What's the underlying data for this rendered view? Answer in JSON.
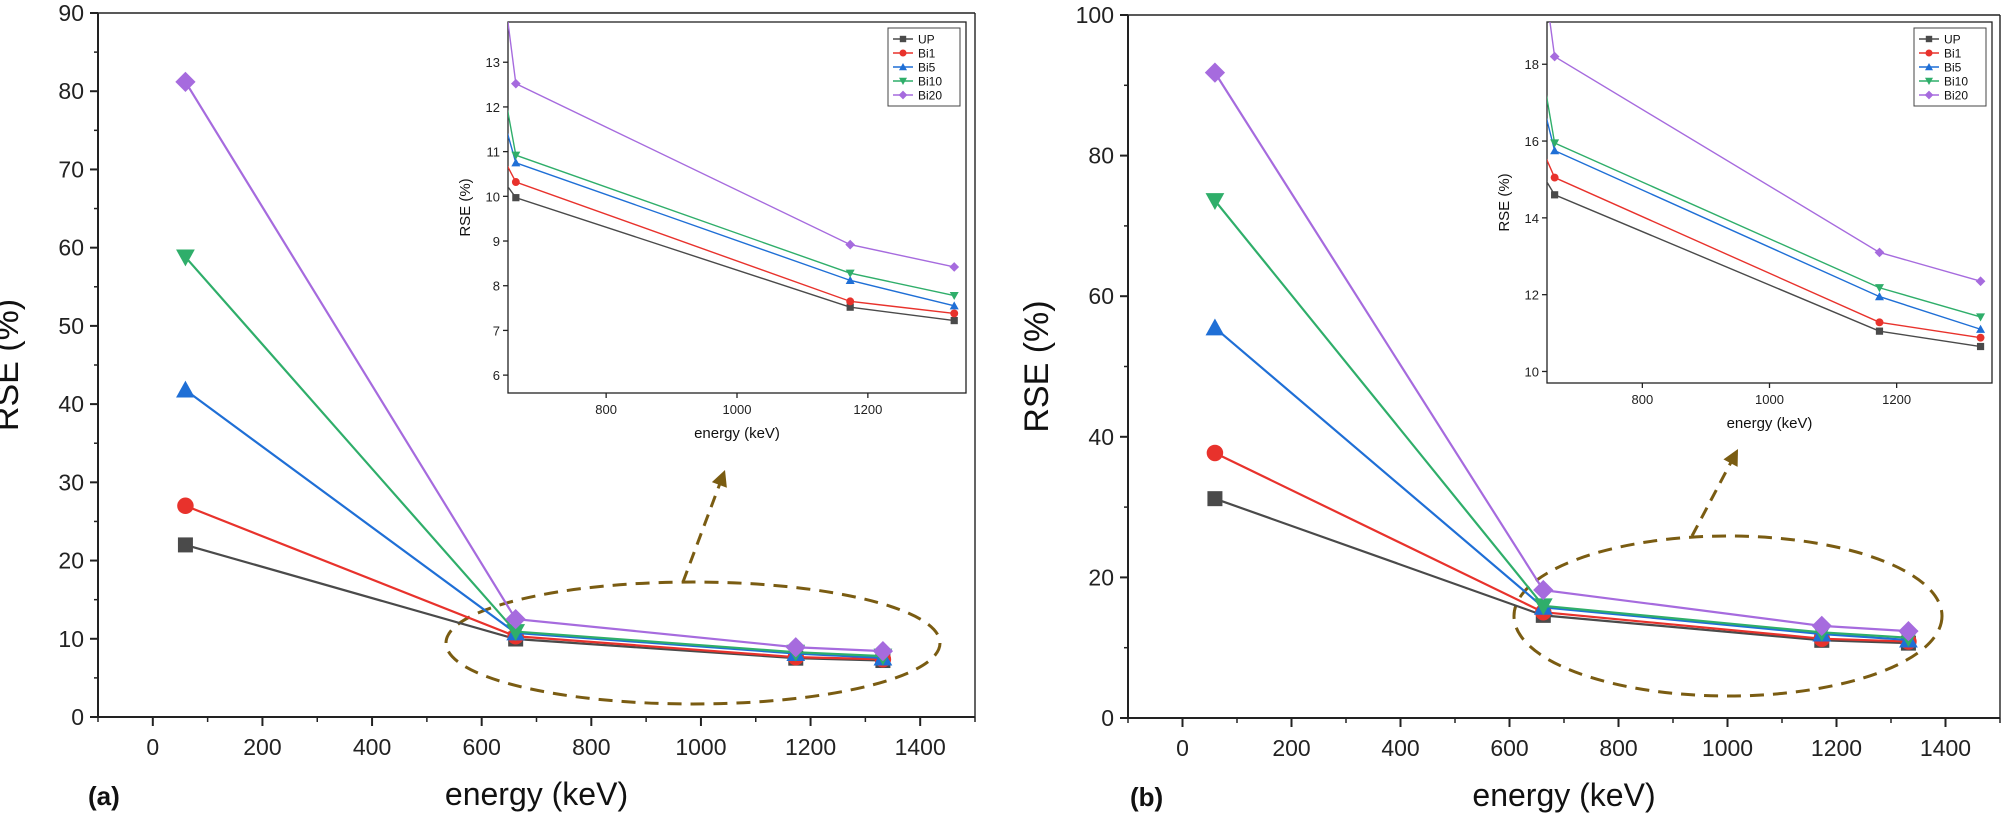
{
  "chart_data": [
    {
      "type": "line",
      "panel_label": "(a)",
      "xlabel": "energy (keV)",
      "ylabel": "RSE (%)",
      "xlim": [
        -100,
        1500
      ],
      "ylim": [
        0,
        90
      ],
      "xticks": [
        0,
        200,
        400,
        600,
        800,
        1000,
        1200,
        1400
      ],
      "yticks": [
        0,
        10,
        20,
        30,
        40,
        50,
        60,
        70,
        80,
        90
      ],
      "x": [
        59.5,
        662,
        1173,
        1332
      ],
      "series": [
        {
          "name": "UP",
          "color": "#4a4a4a",
          "marker": "square",
          "values": [
            22.0,
            9.97,
            7.52,
            7.22
          ]
        },
        {
          "name": "Bi1",
          "color": "#e8322c",
          "marker": "circle",
          "values": [
            27.0,
            10.32,
            7.65,
            7.38
          ]
        },
        {
          "name": "Bi5",
          "color": "#1f6fd6",
          "marker": "triangle",
          "values": [
            41.8,
            10.75,
            8.12,
            7.55
          ]
        },
        {
          "name": "Bi10",
          "color": "#2fae6a",
          "marker": "tri-down",
          "values": [
            58.8,
            10.92,
            8.28,
            7.78
          ]
        },
        {
          "name": "Bi20",
          "color": "#a66bde",
          "marker": "diamond",
          "values": [
            81.2,
            12.52,
            8.92,
            8.42
          ]
        }
      ],
      "annotation": "ellipse-with-arrow",
      "inset": {
        "xlabel": "energy (keV)",
        "ylabel": "RSE (%)",
        "xlim": [
          650,
          1350
        ],
        "ylim": [
          5.6,
          13.9
        ],
        "xticks": [
          800,
          1000,
          1200
        ],
        "yticks": [
          6,
          7,
          8,
          9,
          10,
          11,
          12,
          13
        ],
        "legend": "top-right"
      }
    },
    {
      "type": "line",
      "panel_label": "(b)",
      "xlabel": "energy (keV)",
      "ylabel": "RSE (%)",
      "xlim": [
        -100,
        1500
      ],
      "ylim": [
        0,
        100
      ],
      "xticks": [
        0,
        200,
        400,
        600,
        800,
        1000,
        1200,
        1400
      ],
      "yticks": [
        0,
        20,
        40,
        60,
        80,
        100
      ],
      "x": [
        59.5,
        662,
        1173,
        1332
      ],
      "series": [
        {
          "name": "UP",
          "color": "#4a4a4a",
          "marker": "square",
          "values": [
            31.2,
            14.6,
            11.05,
            10.65
          ]
        },
        {
          "name": "Bi1",
          "color": "#e8322c",
          "marker": "circle",
          "values": [
            37.7,
            15.05,
            11.28,
            10.88
          ]
        },
        {
          "name": "Bi5",
          "color": "#1f6fd6",
          "marker": "triangle",
          "values": [
            55.5,
            15.75,
            11.95,
            11.1
          ]
        },
        {
          "name": "Bi10",
          "color": "#2fae6a",
          "marker": "tri-down",
          "values": [
            73.6,
            15.95,
            12.18,
            11.42
          ]
        },
        {
          "name": "Bi20",
          "color": "#a66bde",
          "marker": "diamond",
          "values": [
            91.8,
            18.2,
            13.1,
            12.35
          ]
        }
      ],
      "annotation": "ellipse-with-arrow",
      "inset": {
        "xlabel": "energy (keV)",
        "ylabel": "RSE (%)",
        "xlim": [
          650,
          1350
        ],
        "ylim": [
          9.7,
          19.1
        ],
        "xticks": [
          800,
          1000,
          1200
        ],
        "yticks": [
          10,
          12,
          14,
          16,
          18
        ],
        "legend": "top-right"
      }
    }
  ]
}
